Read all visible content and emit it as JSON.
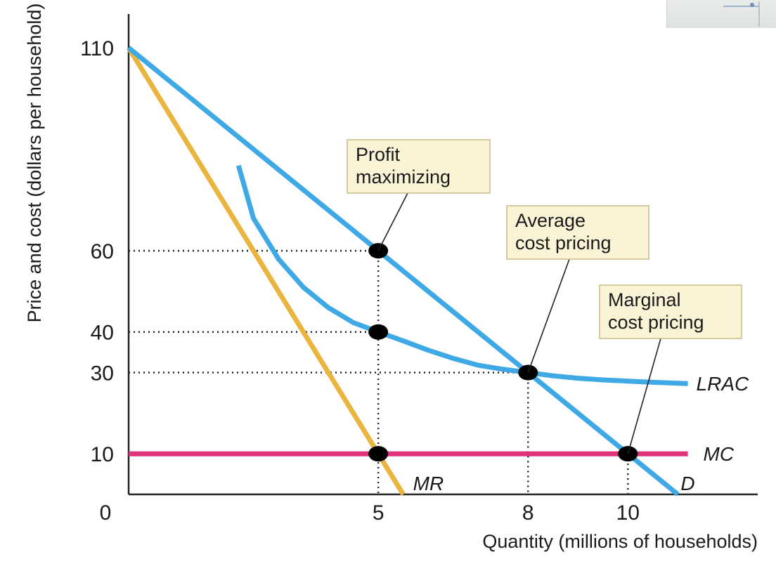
{
  "chart_data": {
    "type": "line",
    "ylabel": "Price and cost (dollars per household)",
    "xlabel": "Quantity (millions of households)",
    "origin_label": "0",
    "xlim": [
      0,
      12.6
    ],
    "ylim": [
      0,
      110
    ],
    "x_ticks": [
      {
        "value": 5,
        "label": "5"
      },
      {
        "value": 8,
        "label": "8"
      },
      {
        "value": 10,
        "label": "10"
      }
    ],
    "y_ticks": [
      {
        "value": 110,
        "label": "110"
      },
      {
        "value": 60,
        "label": "60"
      },
      {
        "value": 40,
        "label": "40"
      },
      {
        "value": 30,
        "label": "30"
      },
      {
        "value": 10,
        "label": "10"
      }
    ],
    "series": [
      {
        "name": "D",
        "color": "#3fa9e5",
        "points": [
          [
            0,
            110
          ],
          [
            11,
            0
          ]
        ]
      },
      {
        "name": "MR",
        "color": "#eab53f",
        "points": [
          [
            0,
            110
          ],
          [
            5.5,
            0
          ]
        ]
      },
      {
        "name": "MC",
        "color": "#e0317a",
        "points": [
          [
            0,
            10
          ],
          [
            11.2,
            10
          ]
        ]
      },
      {
        "name": "LRAC",
        "color": "#3fa9e5",
        "points": [
          [
            2.2,
            81
          ],
          [
            2.5,
            68
          ],
          [
            3,
            58
          ],
          [
            3.5,
            51
          ],
          [
            4,
            46
          ],
          [
            4.5,
            42.3
          ],
          [
            5,
            40
          ],
          [
            5.5,
            37.8
          ],
          [
            6,
            35.5
          ],
          [
            6.5,
            33.5
          ],
          [
            7,
            31.8
          ],
          [
            7.5,
            30.8
          ],
          [
            8,
            30
          ],
          [
            8.5,
            29.2
          ],
          [
            9,
            28.6
          ],
          [
            9.5,
            28.2
          ],
          [
            10,
            27.9
          ],
          [
            10.5,
            27.6
          ],
          [
            11.2,
            27.3
          ]
        ]
      }
    ],
    "points": [
      {
        "x": 5,
        "y": 60
      },
      {
        "x": 5,
        "y": 40
      },
      {
        "x": 5,
        "y": 10
      },
      {
        "x": 8,
        "y": 30
      },
      {
        "x": 10,
        "y": 10
      }
    ],
    "guides": {
      "horizontal": [
        {
          "y": 60,
          "x_to": 5
        },
        {
          "y": 40,
          "x_to": 5
        },
        {
          "y": 30,
          "x_to": 8
        }
      ],
      "vertical": [
        {
          "x": 5,
          "y_to": 60
        },
        {
          "x": 8,
          "y_to": 30
        },
        {
          "x": 10,
          "y_to": 10
        }
      ]
    },
    "annotations": [
      {
        "lines": [
          "Profit",
          "maximizing"
        ],
        "target": {
          "x": 5,
          "y": 60
        }
      },
      {
        "lines": [
          "Average",
          "cost pricing"
        ],
        "target": {
          "x": 8,
          "y": 30
        }
      },
      {
        "lines": [
          "Marginal",
          "cost pricing"
        ],
        "target": {
          "x": 10,
          "y": 10
        }
      }
    ],
    "curve_labels": [
      {
        "text": "LRAC",
        "series": "LRAC"
      },
      {
        "text": "MC",
        "series": "MC"
      },
      {
        "text": "MR",
        "series": "MR"
      },
      {
        "text": "D",
        "series": "D"
      }
    ]
  }
}
